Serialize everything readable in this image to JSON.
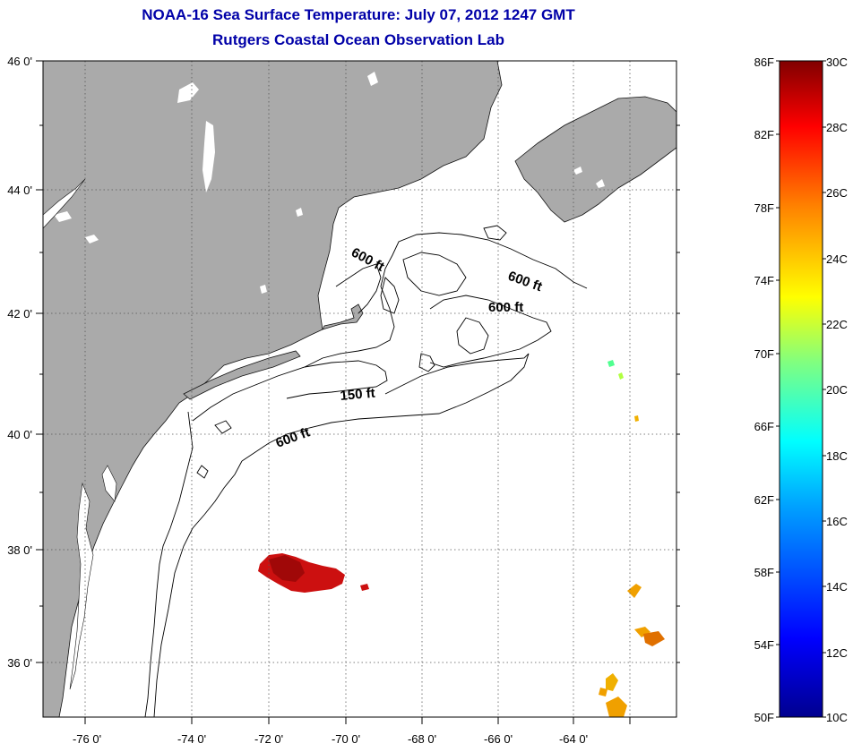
{
  "title": {
    "line1": "NOAA-16 Sea Surface Temperature:  July 07, 2012 1247 GMT",
    "line2": "Rutgers Coastal Ocean Observation Lab"
  },
  "colors": {
    "title": "#0000a8",
    "land": "#aaaaaa",
    "ocean": "#ffffff",
    "grid": "#555555"
  },
  "lon_ticks": [
    "-76 0'",
    "-74 0'",
    "-72 0'",
    "-70 0'",
    "-68 0'",
    "-66 0'",
    "-64 0'"
  ],
  "lat_ticks": [
    "46 0'",
    "44 0'",
    "42 0'",
    "40 0'",
    "38 0'",
    "36 0'"
  ],
  "contour_labels": [
    {
      "text": "600 ft",
      "angle": 28
    },
    {
      "text": "600 ft",
      "angle": 20
    },
    {
      "text": "600 ft",
      "angle": 0
    },
    {
      "text": "150 ft",
      "angle": -5
    },
    {
      "text": "600 ft",
      "angle": -20
    }
  ],
  "colorbar": {
    "fahrenheit": [
      "86F",
      "82F",
      "78F",
      "74F",
      "70F",
      "66F",
      "62F",
      "58F",
      "54F",
      "50F"
    ],
    "celsius": [
      "30C",
      "28C",
      "26C",
      "24C",
      "22C",
      "20C",
      "18C",
      "16C",
      "14C",
      "12C",
      "10C"
    ]
  }
}
